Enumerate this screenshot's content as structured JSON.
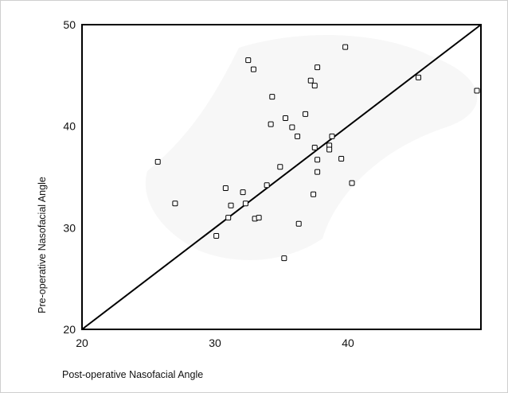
{
  "chart_data": {
    "type": "scatter",
    "xlabel": "Post-operative Nasofacial Angle",
    "ylabel": "Pre-operative Nasofacial Angle",
    "xlim": [
      20,
      50
    ],
    "ylim": [
      20,
      50
    ],
    "xticks": [
      20,
      30,
      40
    ],
    "yticks": [
      20,
      30,
      40,
      50
    ],
    "reference_line": [
      [
        20,
        20
      ],
      [
        50,
        50
      ]
    ],
    "grid": false,
    "points": [
      {
        "x": 25.7,
        "y": 36.5
      },
      {
        "x": 27.0,
        "y": 32.4
      },
      {
        "x": 30.1,
        "y": 29.2
      },
      {
        "x": 30.8,
        "y": 33.9
      },
      {
        "x": 31.0,
        "y": 31.0
      },
      {
        "x": 31.2,
        "y": 32.2
      },
      {
        "x": 32.1,
        "y": 33.5
      },
      {
        "x": 32.3,
        "y": 32.4
      },
      {
        "x": 32.5,
        "y": 46.5
      },
      {
        "x": 32.9,
        "y": 45.6
      },
      {
        "x": 33.0,
        "y": 30.9
      },
      {
        "x": 33.3,
        "y": 31.0
      },
      {
        "x": 33.9,
        "y": 34.2
      },
      {
        "x": 34.2,
        "y": 40.2
      },
      {
        "x": 34.3,
        "y": 42.9
      },
      {
        "x": 34.9,
        "y": 36.0
      },
      {
        "x": 35.2,
        "y": 27.0
      },
      {
        "x": 35.3,
        "y": 40.8
      },
      {
        "x": 35.8,
        "y": 39.9
      },
      {
        "x": 36.2,
        "y": 39.0
      },
      {
        "x": 36.3,
        "y": 30.4
      },
      {
        "x": 36.8,
        "y": 41.2
      },
      {
        "x": 37.2,
        "y": 44.5
      },
      {
        "x": 37.4,
        "y": 33.3
      },
      {
        "x": 37.5,
        "y": 37.9
      },
      {
        "x": 37.5,
        "y": 44.0
      },
      {
        "x": 37.7,
        "y": 35.5
      },
      {
        "x": 37.7,
        "y": 36.7
      },
      {
        "x": 37.7,
        "y": 45.8
      },
      {
        "x": 38.6,
        "y": 38.1
      },
      {
        "x": 38.6,
        "y": 37.7
      },
      {
        "x": 38.8,
        "y": 39.0
      },
      {
        "x": 39.5,
        "y": 36.8
      },
      {
        "x": 39.8,
        "y": 47.8
      },
      {
        "x": 40.3,
        "y": 34.4
      },
      {
        "x": 45.3,
        "y": 44.8
      },
      {
        "x": 49.7,
        "y": 43.5
      }
    ]
  }
}
